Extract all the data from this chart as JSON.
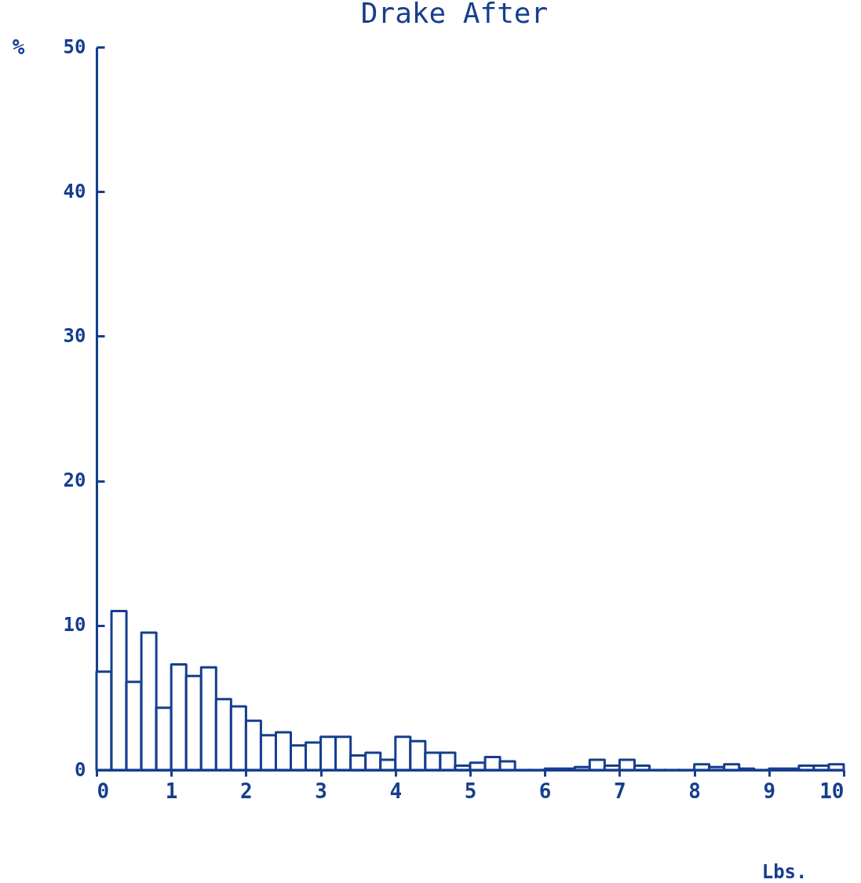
{
  "chart_data": {
    "type": "histogram",
    "title": "Drake  After",
    "xlabel": "Lbs.",
    "ylabel": "%",
    "color": "#163e8e",
    "bins": [
      0,
      0.2,
      0.4,
      0.6,
      0.8,
      1,
      1.2,
      1.4,
      1.6,
      1.8,
      2,
      2.2,
      2.4,
      2.6,
      2.8,
      3,
      3.2,
      3.4,
      3.6,
      3.8,
      4,
      4.2,
      4.4,
      4.6,
      4.8,
      5,
      5.2,
      5.4,
      5.6,
      5.8,
      6,
      6.2,
      6.4,
      6.6,
      6.8,
      7,
      7.2,
      7.4,
      7.6,
      7.8,
      8,
      8.2,
      8.4,
      8.6,
      8.8,
      9,
      9.2,
      9.4,
      9.6,
      9.8,
      10
    ],
    "values": [
      6.8,
      11.0,
      6.1,
      9.5,
      4.3,
      7.3,
      6.5,
      7.1,
      4.9,
      4.4,
      3.4,
      2.4,
      2.6,
      1.7,
      1.9,
      2.3,
      2.3,
      1.0,
      1.2,
      0.7,
      2.3,
      2.0,
      1.2,
      1.2,
      0.3,
      0.5,
      0.9,
      0.6,
      0,
      0,
      0.1,
      0.1,
      0.2,
      0.7,
      0.3,
      0.7,
      0.3,
      0,
      0,
      0,
      0.4,
      0.2,
      0.4,
      0.1,
      0,
      0.1,
      0.1,
      0.3,
      0.3,
      0.4
    ],
    "xlim": [
      0,
      10
    ],
    "xticks": [
      0,
      1,
      2,
      3,
      4,
      5,
      6,
      7,
      8,
      9,
      10
    ],
    "ylim": [
      0,
      50
    ],
    "yticks": [
      0,
      10,
      20,
      30,
      40,
      50
    ],
    "grid": false
  }
}
